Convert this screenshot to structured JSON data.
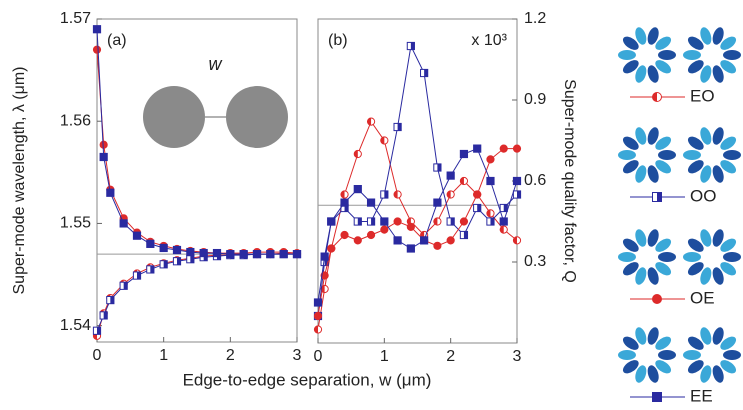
{
  "chart_data": [
    {
      "type": "line",
      "panel_label": "(a)",
      "inset_label": "w",
      "ylabel": "Super-mode wavelength, λ (μm)",
      "xlabel": "Edge-to-edge separation, w (μm)",
      "x": [
        0,
        0.1,
        0.2,
        0.4,
        0.6,
        0.8,
        1.0,
        1.2,
        1.4,
        1.6,
        1.8,
        2.0,
        2.2,
        2.4,
        2.6,
        2.8,
        3.0
      ],
      "xlim": [
        0,
        3
      ],
      "xticks": [
        0,
        1,
        2,
        3
      ],
      "ylim": [
        1.5384,
        1.57
      ],
      "yticks": [
        1.54,
        1.55,
        1.56,
        1.57
      ],
      "hline": 1.547,
      "series": [
        {
          "color": "#dd2a2a",
          "marker": "half-circle",
          "values": [
            1.539,
            1.5412,
            1.5427,
            1.5441,
            1.5451,
            1.5457,
            1.5461,
            1.5464,
            1.5466,
            1.5468,
            1.5469,
            1.5469,
            1.547,
            1.547,
            1.547,
            1.5471,
            1.547
          ]
        },
        {
          "color": "#2a2aa0",
          "marker": "half-square",
          "values": [
            1.5395,
            1.541,
            1.5425,
            1.5439,
            1.5449,
            1.5455,
            1.546,
            1.5463,
            1.5465,
            1.5467,
            1.5468,
            1.5469,
            1.5469,
            1.547,
            1.547,
            1.547,
            1.547
          ]
        },
        {
          "color": "#dd2a2a",
          "marker": "circle",
          "values": [
            1.567,
            1.5577,
            1.5533,
            1.5505,
            1.5491,
            1.5482,
            1.5478,
            1.5475,
            1.5473,
            1.5472,
            1.5471,
            1.5471,
            1.5471,
            1.5472,
            1.5472,
            1.5472,
            1.5471
          ]
        },
        {
          "color": "#2a2aa0",
          "marker": "square",
          "values": [
            1.569,
            1.5565,
            1.553,
            1.55,
            1.5488,
            1.548,
            1.5476,
            1.5474,
            1.5472,
            1.5471,
            1.5471,
            1.547,
            1.547,
            1.547,
            1.547,
            1.547,
            1.547
          ]
        }
      ]
    },
    {
      "type": "line",
      "panel_label": "(b)",
      "multiplier": "x 10³",
      "ylabel": "Super-mode quality factor, Q",
      "x": [
        0,
        0.1,
        0.2,
        0.4,
        0.6,
        0.8,
        1.0,
        1.2,
        1.4,
        1.6,
        1.8,
        2.0,
        2.2,
        2.4,
        2.6,
        2.8,
        3.0
      ],
      "xlim": [
        0,
        3
      ],
      "xticks": [
        0,
        1,
        2,
        3
      ],
      "ylim": [
        0,
        1.2
      ],
      "yticks": [
        0.3,
        0.6,
        0.9,
        1.2
      ],
      "hline": 0.51,
      "series": [
        {
          "name": "EO",
          "color": "#dd2a2a",
          "marker": "half-circle",
          "values": [
            0.05,
            0.2,
            0.35,
            0.55,
            0.7,
            0.82,
            0.75,
            0.55,
            0.45,
            0.4,
            0.45,
            0.55,
            0.6,
            0.55,
            0.48,
            0.42,
            0.38
          ]
        },
        {
          "name": "OO",
          "color": "#2a2aa0",
          "marker": "half-square",
          "values": [
            0.1,
            0.3,
            0.45,
            0.5,
            0.45,
            0.45,
            0.55,
            0.8,
            1.1,
            1.0,
            0.65,
            0.45,
            0.4,
            0.5,
            0.45,
            0.5,
            0.55
          ]
        },
        {
          "name": "OE",
          "color": "#dd2a2a",
          "marker": "circle",
          "values": [
            0.1,
            0.25,
            0.35,
            0.4,
            0.38,
            0.4,
            0.42,
            0.45,
            0.43,
            0.38,
            0.36,
            0.38,
            0.45,
            0.55,
            0.68,
            0.72,
            0.72
          ]
        },
        {
          "name": "EE",
          "color": "#2a2aa0",
          "marker": "square",
          "values": [
            0.15,
            0.32,
            0.45,
            0.52,
            0.57,
            0.52,
            0.45,
            0.38,
            0.35,
            0.38,
            0.52,
            0.62,
            0.7,
            0.72,
            0.6,
            0.45,
            0.6
          ]
        }
      ]
    }
  ]
}
